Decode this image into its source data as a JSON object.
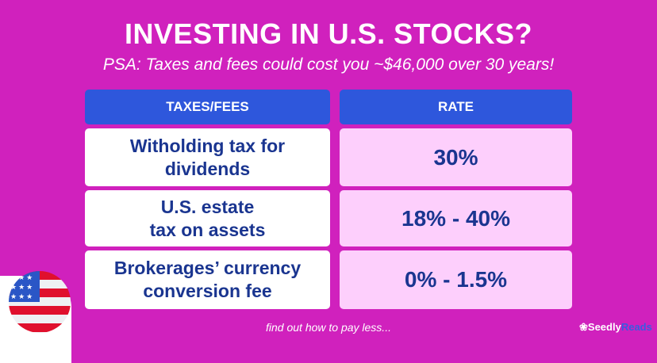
{
  "title": "INVESTING IN U.S. STOCKS?",
  "subtitle": "PSA: Taxes and fees could cost you ~$46,000 over 30 years!",
  "table": {
    "headers": [
      "TAXES/FEES",
      "RATE"
    ],
    "rows": [
      {
        "fee": "Witholding tax for dividends",
        "rate": "30%"
      },
      {
        "fee": "U.S. estate tax on assets",
        "rate": "18% - 40%"
      },
      {
        "fee": "Brokerages’ currency conversion fee",
        "rate": "0% - 1.5%"
      }
    ]
  },
  "footer": "find out how to pay less...",
  "logo": {
    "part1": "Seedly",
    "part2": "Reads"
  },
  "colors": {
    "background": "#d021bd",
    "header": "#2e57dc",
    "rate_cell": "#fdcffc",
    "text": "#1a3590"
  }
}
